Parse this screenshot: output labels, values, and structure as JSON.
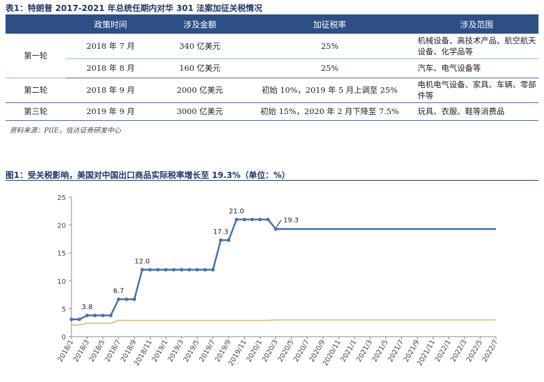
{
  "table": {
    "title": "表1：特朗普 2017-2021 年总统任期内对华 301 法案加征关税情况",
    "headers": [
      "",
      "政策时间",
      "涉及金额",
      "加征税率",
      "涉及范围"
    ],
    "rounds": [
      {
        "label": "第一轮",
        "rows": [
          {
            "time": "2018 年 7 月",
            "amount": "340 亿美元",
            "rate": "25%",
            "scope": "机械设备、高技术产品、航空航天设备、化学品等"
          },
          {
            "time": "2018 年 8 月",
            "amount": "160 亿美元",
            "rate": "25%",
            "scope": "汽车、电气设备等"
          }
        ]
      },
      {
        "label": "第二轮",
        "rows": [
          {
            "time": "2018 年 9 月",
            "amount": "2000 亿美元",
            "rate": "初始 10%，2019 年 5 月上调至 25%",
            "scope": "电机电气设备、家具、车辆、零部件等"
          }
        ]
      },
      {
        "label": "第三轮",
        "rows": [
          {
            "time": "2019 年 9 月",
            "amount": "3000 亿美元",
            "rate": "初始 15%，2020 年 2 月下降至 7.5%",
            "scope": "玩具、衣服、鞋等消费品"
          }
        ]
      }
    ],
    "source": "资料来源：PIIE，信达证券研发中心"
  },
  "figure": {
    "title": "图1：受关税影响，美国对中国出口商品实际税率增长至 19.3%（单位：%）"
  },
  "chart_data": {
    "type": "line",
    "title": "",
    "xlabel": "",
    "ylabel": "",
    "ylim": [
      0,
      25
    ],
    "yticks": [
      0,
      5,
      10,
      15,
      20,
      25
    ],
    "grid": false,
    "x_tick_labels": [
      "2018/1",
      "2018/3",
      "2018/5",
      "2018/7",
      "2018/9",
      "2018/11",
      "2019/1",
      "2019/3",
      "2019/5",
      "2019/7",
      "2019/9",
      "2019/11",
      "2020/1",
      "2020/3",
      "2020/5",
      "2020/7",
      "2020/9",
      "2020/11",
      "2021/1",
      "2021/3",
      "2021/5",
      "2021/7",
      "2021/9",
      "2021/11",
      "2022/1",
      "2022/3",
      "2022/5",
      "2022/7"
    ],
    "series": [
      {
        "color": "#4a72b0",
        "points": [
          [
            0,
            3.1
          ],
          [
            1,
            3.1
          ],
          [
            2,
            3.8
          ],
          [
            3,
            3.8
          ],
          [
            4,
            3.8
          ],
          [
            5,
            3.8
          ],
          [
            6,
            6.7
          ],
          [
            7,
            6.7
          ],
          [
            8,
            6.7
          ],
          [
            9,
            12.0
          ],
          [
            10,
            12.0
          ],
          [
            11,
            12.0
          ],
          [
            12,
            12.0
          ],
          [
            13,
            12.0
          ],
          [
            14,
            12.0
          ],
          [
            15,
            12.0
          ],
          [
            16,
            12.0
          ],
          [
            17,
            12.0
          ],
          [
            18,
            12.0
          ],
          [
            19,
            17.3
          ],
          [
            20,
            17.3
          ],
          [
            21,
            21.0
          ],
          [
            22,
            21.0
          ],
          [
            23,
            21.0
          ],
          [
            24,
            21.0
          ],
          [
            25,
            21.0
          ],
          [
            26,
            19.3
          ],
          [
            27,
            19.3
          ],
          [
            28,
            19.3
          ],
          [
            29,
            19.3
          ],
          [
            30,
            19.3
          ],
          [
            31,
            19.3
          ],
          [
            32,
            19.3
          ],
          [
            33,
            19.3
          ],
          [
            34,
            19.3
          ],
          [
            35,
            19.3
          ],
          [
            36,
            19.3
          ],
          [
            37,
            19.3
          ],
          [
            38,
            19.3
          ],
          [
            39,
            19.3
          ],
          [
            40,
            19.3
          ],
          [
            41,
            19.3
          ],
          [
            42,
            19.3
          ],
          [
            43,
            19.3
          ],
          [
            44,
            19.3
          ],
          [
            45,
            19.3
          ],
          [
            46,
            19.3
          ],
          [
            47,
            19.3
          ],
          [
            48,
            19.3
          ],
          [
            49,
            19.3
          ],
          [
            50,
            19.3
          ],
          [
            51,
            19.3
          ],
          [
            52,
            19.3
          ],
          [
            53,
            19.3
          ],
          [
            54,
            19.3
          ]
        ],
        "markers_until": 26
      },
      {
        "color": "#d9c78a",
        "points": [
          [
            0,
            2.1
          ],
          [
            1,
            2.1
          ],
          [
            2,
            2.4
          ],
          [
            3,
            2.4
          ],
          [
            4,
            2.4
          ],
          [
            5,
            2.4
          ],
          [
            6,
            2.9
          ],
          [
            7,
            2.9
          ],
          [
            8,
            2.9
          ],
          [
            9,
            2.9
          ],
          [
            10,
            2.9
          ],
          [
            11,
            2.9
          ],
          [
            12,
            2.9
          ],
          [
            13,
            2.9
          ],
          [
            14,
            2.9
          ],
          [
            15,
            2.9
          ],
          [
            16,
            2.9
          ],
          [
            17,
            2.9
          ],
          [
            18,
            2.9
          ],
          [
            19,
            2.9
          ],
          [
            20,
            2.9
          ],
          [
            21,
            2.9
          ],
          [
            22,
            2.9
          ],
          [
            23,
            2.9
          ],
          [
            24,
            2.9
          ],
          [
            25,
            2.9
          ],
          [
            26,
            3.0
          ],
          [
            27,
            3.0
          ],
          [
            28,
            3.0
          ],
          [
            29,
            3.0
          ],
          [
            30,
            3.0
          ],
          [
            31,
            3.0
          ],
          [
            32,
            3.0
          ],
          [
            33,
            3.0
          ],
          [
            34,
            3.0
          ],
          [
            35,
            3.0
          ],
          [
            36,
            3.0
          ],
          [
            37,
            3.0
          ],
          [
            38,
            3.0
          ],
          [
            39,
            3.0
          ],
          [
            40,
            3.0
          ],
          [
            41,
            3.0
          ],
          [
            42,
            3.0
          ],
          [
            43,
            3.0
          ],
          [
            44,
            3.0
          ],
          [
            45,
            3.0
          ],
          [
            46,
            3.0
          ],
          [
            47,
            3.0
          ],
          [
            48,
            3.0
          ],
          [
            49,
            3.0
          ],
          [
            50,
            3.0
          ],
          [
            51,
            3.0
          ],
          [
            52,
            3.0
          ],
          [
            53,
            3.0
          ],
          [
            54,
            3.0
          ]
        ]
      }
    ],
    "annotations": [
      {
        "label": "3.8",
        "x": 2,
        "y": 3.8
      },
      {
        "label": "6.7",
        "x": 6,
        "y": 6.7
      },
      {
        "label": "12.0",
        "x": 9,
        "y": 12.0
      },
      {
        "label": "17.3",
        "x": 19,
        "y": 17.3
      },
      {
        "label": "21.0",
        "x": 21,
        "y": 21.0
      },
      {
        "label": "19.3",
        "x": 26,
        "y": 19.3
      }
    ]
  }
}
